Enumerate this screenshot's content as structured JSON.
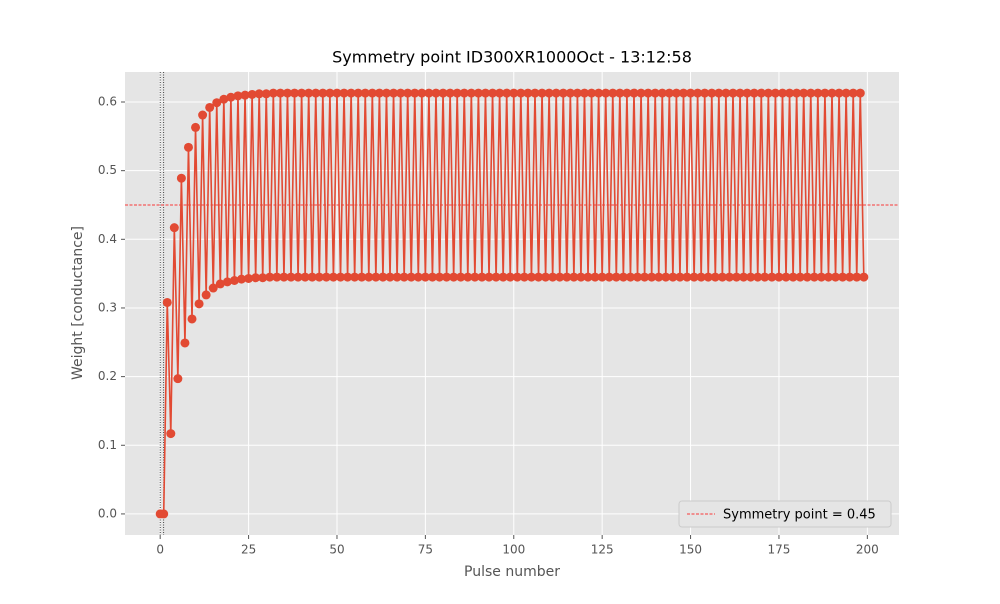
{
  "chart_data": {
    "type": "line",
    "title": "Symmetry point ID300XR1000Oct - 13:12:58",
    "x_label": "Pulse number",
    "y_label": "Weight [conductance]",
    "x": [
      0,
      1,
      2,
      3,
      4,
      5,
      6,
      7,
      8,
      9,
      10,
      11,
      12,
      13,
      14,
      15,
      16,
      17,
      18,
      19,
      20,
      21,
      22,
      23,
      24,
      25,
      26,
      27,
      28,
      29,
      30,
      31,
      32,
      33,
      34,
      35,
      36,
      37,
      38,
      39,
      40,
      41,
      42,
      43,
      44,
      45,
      46,
      47,
      48,
      49,
      50,
      51,
      52,
      53,
      54,
      55,
      56,
      57,
      58,
      59,
      60,
      61,
      62,
      63,
      64,
      65,
      66,
      67,
      68,
      69,
      70,
      71,
      72,
      73,
      74,
      75,
      76,
      77,
      78,
      79,
      80,
      81,
      82,
      83,
      84,
      85,
      86,
      87,
      88,
      89,
      90,
      91,
      92,
      93,
      94,
      95,
      96,
      97,
      98,
      99,
      100,
      101,
      102,
      103,
      104,
      105,
      106,
      107,
      108,
      109,
      110,
      111,
      112,
      113,
      114,
      115,
      116,
      117,
      118,
      119,
      120,
      121,
      122,
      123,
      124,
      125,
      126,
      127,
      128,
      129,
      130,
      131,
      132,
      133,
      134,
      135,
      136,
      137,
      138,
      139,
      140,
      141,
      142,
      143,
      144,
      145,
      146,
      147,
      148,
      149,
      150,
      151,
      152,
      153,
      154,
      155,
      156,
      157,
      158,
      159,
      160,
      161,
      162,
      163,
      164,
      165,
      166,
      167,
      168,
      169,
      170,
      171,
      172,
      173,
      174,
      175,
      176,
      177,
      178,
      179,
      180,
      181,
      182,
      183,
      184,
      185,
      186,
      187,
      188,
      189,
      190,
      191,
      192,
      193,
      194,
      195,
      196,
      197,
      198,
      199
    ],
    "series": [
      {
        "color": "#E24A33",
        "values": [
          0,
          0,
          0.308,
          0.117,
          0.417,
          0.197,
          0.489,
          0.249,
          0.534,
          0.284,
          0.563,
          0.306,
          0.581,
          0.319,
          0.592,
          0.329,
          0.599,
          0.335,
          0.604,
          0.338,
          0.607,
          0.34,
          0.609,
          0.342,
          0.61,
          0.343,
          0.611,
          0.344,
          0.612,
          0.344,
          0.612,
          0.345,
          0.613,
          0.345,
          0.613,
          0.345,
          0.613,
          0.345,
          0.613,
          0.345,
          0.613,
          0.345,
          0.613,
          0.345,
          0.613,
          0.345,
          0.613,
          0.345,
          0.613,
          0.345,
          0.613,
          0.345,
          0.613,
          0.345,
          0.613,
          0.345,
          0.613,
          0.345,
          0.613,
          0.345,
          0.613,
          0.345,
          0.613,
          0.345,
          0.613,
          0.345,
          0.613,
          0.345,
          0.613,
          0.345,
          0.613,
          0.345,
          0.613,
          0.345,
          0.613,
          0.345,
          0.613,
          0.345,
          0.613,
          0.345,
          0.613,
          0.345,
          0.613,
          0.345,
          0.613,
          0.345,
          0.613,
          0.345,
          0.613,
          0.345,
          0.613,
          0.345,
          0.613,
          0.345,
          0.613,
          0.345,
          0.613,
          0.345,
          0.613,
          0.345,
          0.613,
          0.345,
          0.613,
          0.345,
          0.613,
          0.345,
          0.613,
          0.345,
          0.613,
          0.345,
          0.613,
          0.345,
          0.613,
          0.345,
          0.613,
          0.345,
          0.613,
          0.345,
          0.613,
          0.345,
          0.613,
          0.345,
          0.613,
          0.345,
          0.613,
          0.345,
          0.613,
          0.345,
          0.613,
          0.345,
          0.613,
          0.345,
          0.613,
          0.345,
          0.613,
          0.345,
          0.613,
          0.345,
          0.613,
          0.345,
          0.613,
          0.345,
          0.613,
          0.345,
          0.613,
          0.345,
          0.613,
          0.345,
          0.613,
          0.345,
          0.613,
          0.345,
          0.613,
          0.345,
          0.613,
          0.345,
          0.613,
          0.345,
          0.613,
          0.345,
          0.613,
          0.345,
          0.613,
          0.345,
          0.613,
          0.345,
          0.613,
          0.345,
          0.613,
          0.345,
          0.613,
          0.345,
          0.613,
          0.345,
          0.613,
          0.345,
          0.613,
          0.345,
          0.613,
          0.345,
          0.613,
          0.345,
          0.613,
          0.345,
          0.613,
          0.345,
          0.613,
          0.345,
          0.613,
          0.345,
          0.613,
          0.345,
          0.613,
          0.345,
          0.613,
          0.345,
          0.613,
          0.345,
          0.613,
          0.345
        ]
      }
    ],
    "reference_lines": [
      {
        "name": "Symmetry point = 0.45",
        "value": 0.45,
        "color": "red"
      }
    ],
    "vlines": [
      0,
      1
    ],
    "xlim": [
      -9.95,
      208.95
    ],
    "xticks": [
      0,
      25,
      50,
      75,
      100,
      125,
      150,
      175,
      200
    ],
    "ylim": [
      -0.0307,
      0.6437
    ],
    "yticks": [
      {
        "value": 0,
        "label": "0.0"
      },
      0.1,
      0.2,
      0.3,
      0.4,
      0.5,
      0.6
    ],
    "grid": true,
    "legend": "lower right"
  }
}
